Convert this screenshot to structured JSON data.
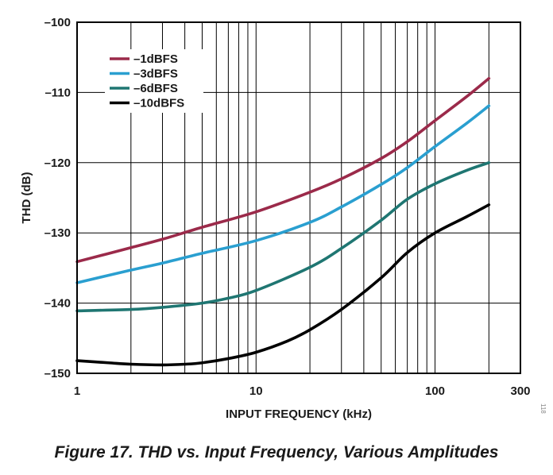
{
  "figure_caption": "Figure 17. THD vs. Input Frequency, Various Amplitudes",
  "side_id": "118",
  "chart_data": {
    "type": "line",
    "title": "",
    "xlabel": "INPUT FREQUENCY (kHz)",
    "ylabel": "THD (dB)",
    "x_scale": "log",
    "xlim": [
      1,
      300
    ],
    "ylim": [
      -150,
      -100
    ],
    "x_ticks": [
      1,
      10,
      100,
      300
    ],
    "x_tick_labels": [
      "1",
      "10",
      "100",
      "300"
    ],
    "y_ticks": [
      -100,
      -110,
      -120,
      -130,
      -140,
      -150
    ],
    "y_tick_labels": [
      "–100",
      "–110",
      "–120",
      "–130",
      "–140",
      "–150"
    ],
    "grid": true,
    "legend_position": "top-left",
    "series": [
      {
        "name": "–1dBFS",
        "color": "#9b2a4a",
        "points": [
          [
            1,
            -134.1
          ],
          [
            2,
            -132.1
          ],
          [
            3,
            -130.9
          ],
          [
            5,
            -129.2
          ],
          [
            10,
            -127.0
          ],
          [
            20,
            -124.2
          ],
          [
            30,
            -122.3
          ],
          [
            50,
            -119.4
          ],
          [
            70,
            -117.0
          ],
          [
            100,
            -114.0
          ],
          [
            150,
            -110.6
          ],
          [
            200,
            -108.0
          ]
        ]
      },
      {
        "name": "–3dBFS",
        "color": "#2a9fd0",
        "points": [
          [
            1,
            -137.1
          ],
          [
            2,
            -135.3
          ],
          [
            3,
            -134.3
          ],
          [
            5,
            -132.9
          ],
          [
            10,
            -131.1
          ],
          [
            20,
            -128.5
          ],
          [
            30,
            -126.3
          ],
          [
            50,
            -123.1
          ],
          [
            70,
            -120.7
          ],
          [
            100,
            -117.7
          ],
          [
            150,
            -114.4
          ],
          [
            200,
            -111.9
          ]
        ]
      },
      {
        "name": "–6dBFS",
        "color": "#1f7672",
        "points": [
          [
            1,
            -141.1
          ],
          [
            2,
            -140.9
          ],
          [
            3,
            -140.6
          ],
          [
            5,
            -140.0
          ],
          [
            7,
            -139.3
          ],
          [
            10,
            -138.2
          ],
          [
            20,
            -134.9
          ],
          [
            30,
            -132.2
          ],
          [
            50,
            -128.2
          ],
          [
            70,
            -125.2
          ],
          [
            100,
            -123.0
          ],
          [
            150,
            -121.1
          ],
          [
            200,
            -120.0
          ]
        ]
      },
      {
        "name": "–10dBFS",
        "color": "#000000",
        "points": [
          [
            1,
            -148.2
          ],
          [
            1.5,
            -148.5
          ],
          [
            2,
            -148.7
          ],
          [
            3,
            -148.8
          ],
          [
            4,
            -148.7
          ],
          [
            5,
            -148.5
          ],
          [
            7,
            -147.9
          ],
          [
            10,
            -147.0
          ],
          [
            15,
            -145.4
          ],
          [
            20,
            -143.8
          ],
          [
            30,
            -140.9
          ],
          [
            50,
            -136.4
          ],
          [
            70,
            -132.8
          ],
          [
            100,
            -130.0
          ],
          [
            150,
            -127.7
          ],
          [
            200,
            -126.0
          ]
        ]
      }
    ]
  }
}
